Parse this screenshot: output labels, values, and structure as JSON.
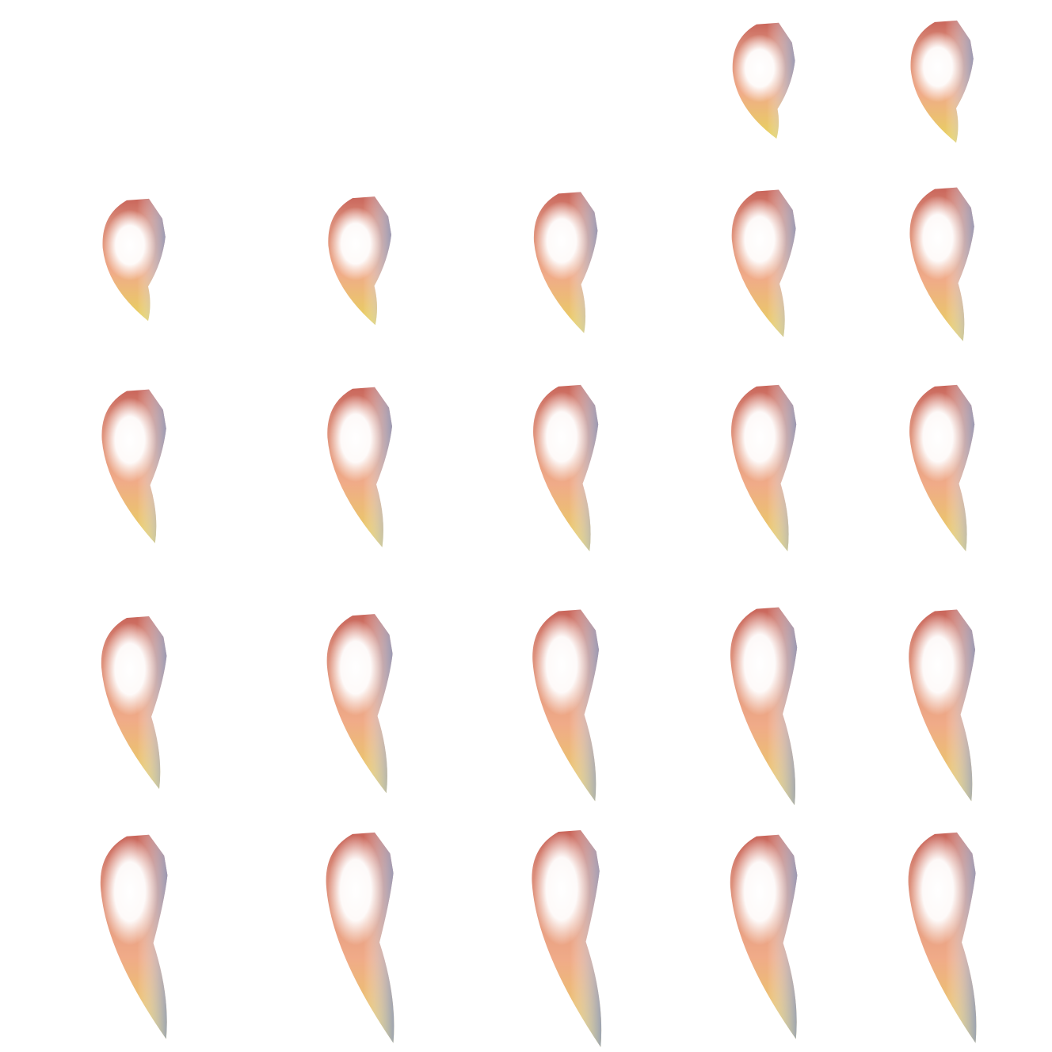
{
  "colors": {
    "background": "#ffffff",
    "rim_top": "#c9655a",
    "rim_side": "#8e9bbd",
    "rim_bottom": "#e7d45c",
    "highlight": "#ffffff",
    "mid_tone": "#f2a98a"
  },
  "grid": {
    "rows": 5,
    "columns": 5,
    "first_row_filled_columns": [
      4,
      5
    ]
  },
  "shapes": [
    {
      "row": 1,
      "col": 4,
      "elongation": 0.15
    },
    {
      "row": 1,
      "col": 5,
      "elongation": 0.2
    },
    {
      "row": 2,
      "col": 1,
      "elongation": 0.2
    },
    {
      "row": 2,
      "col": 2,
      "elongation": 0.25
    },
    {
      "row": 2,
      "col": 3,
      "elongation": 0.35
    },
    {
      "row": 2,
      "col": 4,
      "elongation": 0.4
    },
    {
      "row": 2,
      "col": 5,
      "elongation": 0.45
    },
    {
      "row": 3,
      "col": 1,
      "elongation": 0.45
    },
    {
      "row": 3,
      "col": 2,
      "elongation": 0.5
    },
    {
      "row": 3,
      "col": 3,
      "elongation": 0.55
    },
    {
      "row": 3,
      "col": 4,
      "elongation": 0.55
    },
    {
      "row": 3,
      "col": 5,
      "elongation": 0.55
    },
    {
      "row": 4,
      "col": 1,
      "elongation": 0.6
    },
    {
      "row": 4,
      "col": 2,
      "elongation": 0.65
    },
    {
      "row": 4,
      "col": 3,
      "elongation": 0.75
    },
    {
      "row": 4,
      "col": 4,
      "elongation": 0.8
    },
    {
      "row": 4,
      "col": 5,
      "elongation": 0.75
    },
    {
      "row": 5,
      "col": 1,
      "elongation": 0.85
    },
    {
      "row": 5,
      "col": 2,
      "elongation": 0.9
    },
    {
      "row": 5,
      "col": 3,
      "elongation": 0.95
    },
    {
      "row": 5,
      "col": 4,
      "elongation": 0.85
    },
    {
      "row": 5,
      "col": 5,
      "elongation": 0.9
    }
  ]
}
